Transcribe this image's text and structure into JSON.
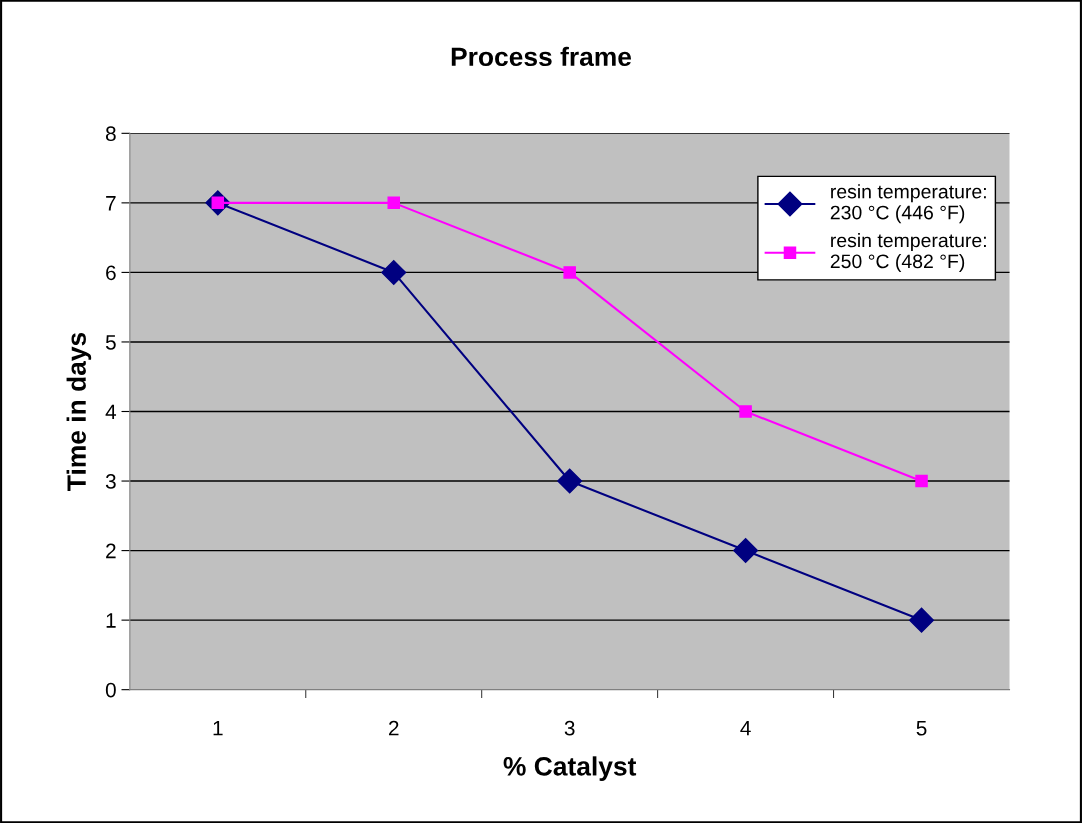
{
  "chart_data": {
    "type": "line",
    "title": "Process frame",
    "xlabel": "% Catalyst",
    "ylabel": "Time in days",
    "categories": [
      "1",
      "2",
      "3",
      "4",
      "5"
    ],
    "series": [
      {
        "name": "resin temperature:\n230 °C (446 °F)",
        "color": "#000080",
        "marker": "diamond",
        "values": [
          7,
          6,
          3,
          2,
          1
        ]
      },
      {
        "name": "resin temperature:\n250 °C (482 °F)",
        "color": "#ff00ff",
        "marker": "square",
        "values": [
          7,
          7,
          6,
          4,
          3
        ]
      }
    ],
    "ylim": [
      0,
      8
    ],
    "yticks": [
      0,
      1,
      2,
      3,
      4,
      5,
      6,
      7,
      8
    ],
    "grid": "y",
    "legend": "top right",
    "line_style": "solid"
  }
}
